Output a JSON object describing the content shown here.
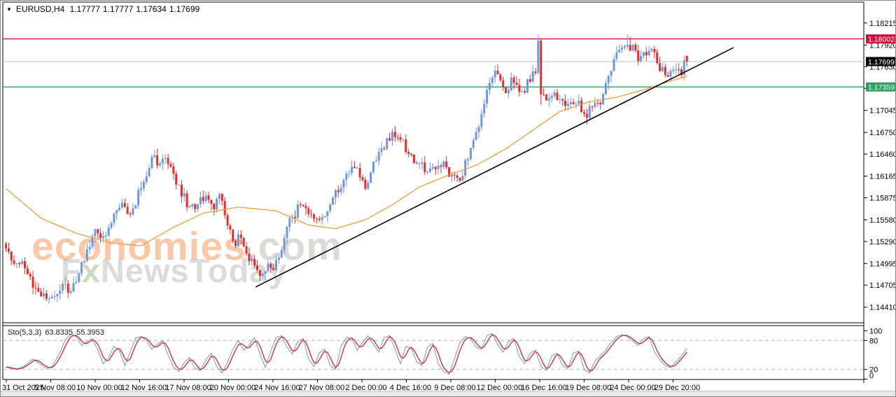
{
  "header": {
    "collapse_icon": "▼",
    "symbol_line": "EURUSD,H4",
    "open": "1.17777",
    "high": "1.17777",
    "low": "1.17634",
    "close": "1.17699"
  },
  "watermark": {
    "brand": "economies",
    "domain": ".com",
    "f": "F",
    "x": "x",
    "rest": "NewsToday"
  },
  "chart_data": {
    "type": "candlestick",
    "symbol": "EURUSD",
    "timeframe": "H4",
    "title": "EURUSD,H4 1.17777 1.17777 1.17634 1.17699",
    "last_ohlc": {
      "open": 1.17777,
      "high": 1.17777,
      "low": 1.17634,
      "close": 1.17699
    },
    "y_axis": {
      "top_price": 1.18495,
      "bottom_price": 1.14201,
      "ticks": [
        1.18215,
        1.1792,
        1.1763,
        1.1734,
        1.17045,
        1.1675,
        1.1646,
        1.16165,
        1.15875,
        1.1558,
        1.1529,
        1.14995,
        1.14705,
        1.1441
      ]
    },
    "x_axis": {
      "labels": [
        "31 Oct 2025",
        "5 Nov 08:00",
        "10 Nov 00:00",
        "12 Nov 16:00",
        "17 Nov 08:00",
        "20 Nov 00:00",
        "24 Nov 16:00",
        "27 Nov 08:00",
        "2 Dec 00:00",
        "4 Dec 16:00",
        "9 Dec 08:00",
        "12 Dec 00:00",
        "16 Dec 16:00",
        "19 Dec 08:00",
        "24 Dec 00:00",
        "29 Dec 20:00"
      ]
    },
    "levels": [
      {
        "name": "resistance",
        "price": 1.18002,
        "label": "1.18002",
        "color": "#c9133e",
        "badge": "#c9133e"
      },
      {
        "name": "support",
        "price": 1.17359,
        "label": "1.17359",
        "color": "#2ba05f",
        "badge": "#2ba05f"
      },
      {
        "name": "current-bid",
        "price": 1.17699,
        "label": "1.17699",
        "color": "#bdbdbd",
        "badge": "#000000"
      }
    ],
    "candles": {
      "count": 253,
      "up_color": "#6e96e3",
      "down_color": "#e32c2c",
      "noise_amp": 0.0007,
      "wick_amp": 0.0009,
      "close_anchors": [
        [
          0,
          1.1516
        ],
        [
          3,
          1.1506
        ],
        [
          6,
          1.1498
        ],
        [
          9,
          1.1478
        ],
        [
          12,
          1.1462
        ],
        [
          15,
          1.1452
        ],
        [
          17,
          1.1448
        ],
        [
          19,
          1.1459
        ],
        [
          21,
          1.1471
        ],
        [
          23,
          1.1464
        ],
        [
          25,
          1.1473
        ],
        [
          27,
          1.1489
        ],
        [
          29,
          1.1509
        ],
        [
          31,
          1.1526
        ],
        [
          33,
          1.1541
        ],
        [
          35,
          1.1531
        ],
        [
          37,
          1.1543
        ],
        [
          39,
          1.1555
        ],
        [
          41,
          1.1566
        ],
        [
          43,
          1.1577
        ],
        [
          45,
          1.1561
        ],
        [
          47,
          1.1571
        ],
        [
          49,
          1.1591
        ],
        [
          51,
          1.1611
        ],
        [
          53,
          1.1629
        ],
        [
          55,
          1.1641
        ],
        [
          57,
          1.1633
        ],
        [
          59,
          1.1642
        ],
        [
          61,
          1.1626
        ],
        [
          63,
          1.1611
        ],
        [
          65,
          1.1596
        ],
        [
          67,
          1.1581
        ],
        [
          69,
          1.1573
        ],
        [
          71,
          1.1581
        ],
        [
          73,
          1.159
        ],
        [
          75,
          1.1586
        ],
        [
          77,
          1.1576
        ],
        [
          79,
          1.1586
        ],
        [
          81,
          1.1571
        ],
        [
          83,
          1.1541
        ],
        [
          85,
          1.1529
        ],
        [
          87,
          1.1539
        ],
        [
          89,
          1.1516
        ],
        [
          91,
          1.1501
        ],
        [
          93,
          1.1489
        ],
        [
          95,
          1.1483
        ],
        [
          97,
          1.1495
        ],
        [
          99,
          1.1491
        ],
        [
          101,
          1.1505
        ],
        [
          103,
          1.1529
        ],
        [
          105,
          1.1557
        ],
        [
          107,
          1.1567
        ],
        [
          109,
          1.1577
        ],
        [
          111,
          1.1571
        ],
        [
          113,
          1.1561
        ],
        [
          115,
          1.1553
        ],
        [
          117,
          1.1561
        ],
        [
          119,
          1.1569
        ],
        [
          121,
          1.1581
        ],
        [
          123,
          1.1601
        ],
        [
          125,
          1.1615
        ],
        [
          127,
          1.1623
        ],
        [
          129,
          1.1631
        ],
        [
          131,
          1.1619
        ],
        [
          133,
          1.1601
        ],
        [
          135,
          1.1621
        ],
        [
          137,
          1.1639
        ],
        [
          139,
          1.1651
        ],
        [
          141,
          1.1661
        ],
        [
          143,
          1.1669
        ],
        [
          145,
          1.1671
        ],
        [
          147,
          1.1661
        ],
        [
          149,
          1.1649
        ],
        [
          151,
          1.1639
        ],
        [
          153,
          1.1631
        ],
        [
          155,
          1.1626
        ],
        [
          157,
          1.1621
        ],
        [
          159,
          1.1629
        ],
        [
          161,
          1.1633
        ],
        [
          163,
          1.1626
        ],
        [
          165,
          1.1619
        ],
        [
          167,
          1.1611
        ],
        [
          169,
          1.1621
        ],
        [
          171,
          1.1641
        ],
        [
          173,
          1.1661
        ],
        [
          175,
          1.1689
        ],
        [
          177,
          1.1715
        ],
        [
          179,
          1.1737
        ],
        [
          181,
          1.1756
        ],
        [
          183,
          1.1748
        ],
        [
          185,
          1.1733
        ],
        [
          187,
          1.1743
        ],
        [
          189,
          1.1737
        ],
        [
          191,
          1.1727
        ],
        [
          193,
          1.1743
        ],
        [
          195,
          1.1751
        ],
        [
          196,
          1.1756
        ],
        [
          197,
          1.1798
        ],
        [
          198,
          1.1729
        ],
        [
          200,
          1.1713
        ],
        [
          202,
          1.1727
        ],
        [
          204,
          1.1719
        ],
        [
          206,
          1.1711
        ],
        [
          208,
          1.1717
        ],
        [
          210,
          1.1707
        ],
        [
          212,
          1.1713
        ],
        [
          214,
          1.1698
        ],
        [
          216,
          1.1704
        ],
        [
          218,
          1.1709
        ],
        [
          220,
          1.1716
        ],
        [
          222,
          1.1736
        ],
        [
          224,
          1.1763
        ],
        [
          226,
          1.1781
        ],
        [
          228,
          1.1791
        ],
        [
          230,
          1.1794
        ],
        [
          232,
          1.1786
        ],
        [
          234,
          1.1774
        ],
        [
          236,
          1.1781
        ],
        [
          238,
          1.1787
        ],
        [
          240,
          1.1777
        ],
        [
          242,
          1.1763
        ],
        [
          244,
          1.1756
        ],
        [
          246,
          1.1751
        ],
        [
          248,
          1.1759
        ],
        [
          250,
          1.1753
        ],
        [
          251,
          1.17777
        ],
        [
          252,
          1.17699
        ]
      ],
      "wick_overrides": {
        "197": {
          "h": 1.1806,
          "l": 1.1752
        },
        "198": {
          "h": 1.18,
          "l": 1.1712
        },
        "230": {
          "h": 1.1806
        },
        "231": {
          "h": 1.1803
        }
      }
    },
    "moving_average": {
      "name": "MA",
      "color": "#ef9d3e",
      "anchors": [
        [
          0,
          1.16
        ],
        [
          13,
          1.156
        ],
        [
          26,
          1.154
        ],
        [
          39,
          1.1527
        ],
        [
          50,
          1.1523
        ],
        [
          61,
          1.1546
        ],
        [
          73,
          1.1567
        ],
        [
          86,
          1.1575
        ],
        [
          100,
          1.157
        ],
        [
          112,
          1.1551
        ],
        [
          122,
          1.1546
        ],
        [
          133,
          1.1558
        ],
        [
          143,
          1.1578
        ],
        [
          153,
          1.1602
        ],
        [
          164,
          1.1618
        ],
        [
          174,
          1.1631
        ],
        [
          185,
          1.1653
        ],
        [
          195,
          1.1678
        ],
        [
          205,
          1.1703
        ],
        [
          216,
          1.1716
        ],
        [
          226,
          1.1722
        ],
        [
          237,
          1.1733
        ],
        [
          246,
          1.1744
        ],
        [
          252,
          1.175
        ]
      ]
    },
    "trendline": {
      "name": "ascending-trendline",
      "color": "#000000",
      "from": [
        92.4,
        1.1468
      ],
      "to": [
        269.3,
        1.17886
      ]
    },
    "stochastic": {
      "label": "Sto(5,3,3)",
      "k_value": "63.8335",
      "d_value": "55.3953",
      "k_color": "#7aa0dc",
      "d_color": "#d23333",
      "level_color": "#b0b0b0",
      "levels": [
        80,
        20
      ],
      "axis_labels": [
        100,
        80,
        20,
        0
      ],
      "k_anchors": [
        [
          0,
          25
        ],
        [
          2,
          22
        ],
        [
          4,
          20
        ],
        [
          7,
          28
        ],
        [
          10,
          42
        ],
        [
          13,
          30
        ],
        [
          15,
          22
        ],
        [
          17,
          26
        ],
        [
          20,
          55
        ],
        [
          22,
          82
        ],
        [
          24,
          93
        ],
        [
          26,
          88
        ],
        [
          28,
          70
        ],
        [
          30,
          78
        ],
        [
          32,
          84
        ],
        [
          34,
          60
        ],
        [
          36,
          32
        ],
        [
          38,
          45
        ],
        [
          40,
          68
        ],
        [
          42,
          58
        ],
        [
          44,
          28
        ],
        [
          46,
          56
        ],
        [
          48,
          85
        ],
        [
          50,
          88
        ],
        [
          52,
          80
        ],
        [
          54,
          62
        ],
        [
          56,
          72
        ],
        [
          58,
          80
        ],
        [
          60,
          50
        ],
        [
          62,
          25
        ],
        [
          64,
          16
        ],
        [
          66,
          34
        ],
        [
          68,
          45
        ],
        [
          70,
          22
        ],
        [
          72,
          18
        ],
        [
          74,
          40
        ],
        [
          76,
          54
        ],
        [
          78,
          26
        ],
        [
          80,
          13
        ],
        [
          82,
          35
        ],
        [
          84,
          62
        ],
        [
          86,
          80
        ],
        [
          88,
          60
        ],
        [
          90,
          70
        ],
        [
          92,
          86
        ],
        [
          94,
          52
        ],
        [
          96,
          24
        ],
        [
          98,
          58
        ],
        [
          100,
          86
        ],
        [
          102,
          90
        ],
        [
          104,
          66
        ],
        [
          106,
          52
        ],
        [
          108,
          78
        ],
        [
          110,
          84
        ],
        [
          112,
          42
        ],
        [
          114,
          26
        ],
        [
          116,
          54
        ],
        [
          118,
          62
        ],
        [
          120,
          28
        ],
        [
          122,
          20
        ],
        [
          124,
          68
        ],
        [
          126,
          86
        ],
        [
          128,
          84
        ],
        [
          130,
          60
        ],
        [
          132,
          76
        ],
        [
          134,
          90
        ],
        [
          136,
          72
        ],
        [
          138,
          56
        ],
        [
          140,
          86
        ],
        [
          142,
          90
        ],
        [
          144,
          62
        ],
        [
          146,
          32
        ],
        [
          148,
          68
        ],
        [
          150,
          64
        ],
        [
          152,
          36
        ],
        [
          154,
          28
        ],
        [
          156,
          66
        ],
        [
          158,
          74
        ],
        [
          160,
          32
        ],
        [
          162,
          16
        ],
        [
          164,
          10
        ],
        [
          166,
          42
        ],
        [
          168,
          76
        ],
        [
          170,
          88
        ],
        [
          172,
          84
        ],
        [
          174,
          66
        ],
        [
          176,
          62
        ],
        [
          178,
          90
        ],
        [
          180,
          94
        ],
        [
          182,
          72
        ],
        [
          184,
          56
        ],
        [
          186,
          78
        ],
        [
          188,
          84
        ],
        [
          190,
          46
        ],
        [
          192,
          32
        ],
        [
          194,
          54
        ],
        [
          196,
          60
        ],
        [
          198,
          26
        ],
        [
          200,
          18
        ],
        [
          202,
          48
        ],
        [
          204,
          54
        ],
        [
          206,
          28
        ],
        [
          208,
          22
        ],
        [
          210,
          54
        ],
        [
          212,
          58
        ],
        [
          214,
          20
        ],
        [
          216,
          13
        ],
        [
          218,
          38
        ],
        [
          220,
          48
        ],
        [
          222,
          60
        ],
        [
          224,
          76
        ],
        [
          226,
          88
        ],
        [
          228,
          92
        ],
        [
          230,
          88
        ],
        [
          232,
          78
        ],
        [
          234,
          70
        ],
        [
          236,
          84
        ],
        [
          238,
          88
        ],
        [
          240,
          56
        ],
        [
          242,
          40
        ],
        [
          244,
          28
        ],
        [
          246,
          24
        ],
        [
          248,
          36
        ],
        [
          250,
          48
        ],
        [
          252,
          63.8
        ]
      ]
    }
  },
  "colors": {
    "frame": "#000000",
    "axis_text": "#000000",
    "badge_text": "#ffffff",
    "background": "#ffffff"
  }
}
